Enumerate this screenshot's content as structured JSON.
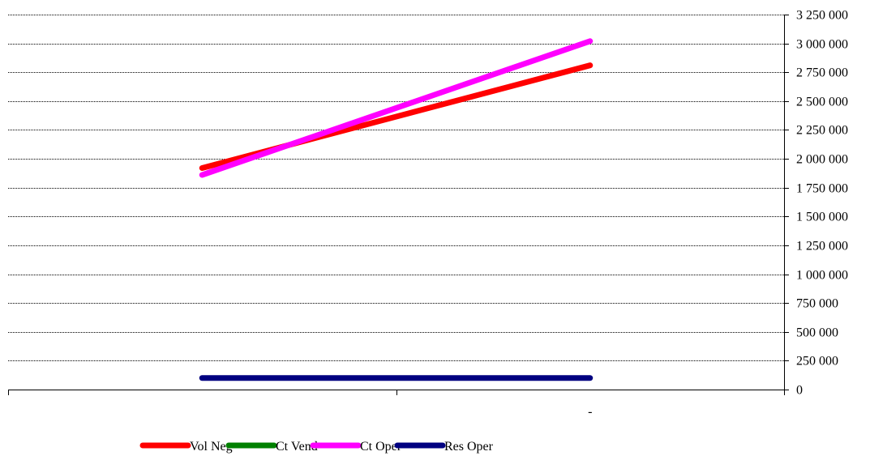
{
  "chart_data": {
    "type": "line",
    "title": "",
    "xlabel": "",
    "ylabel": "",
    "ylim": [
      0,
      3250000
    ],
    "y_ticks": [
      0,
      250000,
      500000,
      750000,
      1000000,
      1250000,
      1500000,
      1750000,
      2000000,
      2250000,
      2500000,
      2750000,
      3000000,
      3250000
    ],
    "y_tick_labels": [
      "0",
      "250 000",
      "500 000",
      "750 000",
      "1 000 000",
      "1 250 000",
      "1 500 000",
      "1 750 000",
      "2 000 000",
      "2 250 000",
      "2 500 000",
      "2 750 000",
      "3 000 000",
      "3 250 000"
    ],
    "y_axis_position": "right",
    "grid": true,
    "categories": [
      "",
      "-"
    ],
    "series": [
      {
        "name": "Vol Neg",
        "color": "#ff0000",
        "values": [
          1920000,
          2810000
        ]
      },
      {
        "name": "Ct Vend",
        "color": "#008000",
        "values": [
          null,
          null
        ]
      },
      {
        "name": "Ct Oper",
        "color": "#ff00ff",
        "values": [
          1860000,
          3020000
        ]
      },
      {
        "name": "Res Oper",
        "color": "#000080",
        "values": [
          100000,
          100000
        ]
      }
    ],
    "legend_position": "bottom"
  }
}
